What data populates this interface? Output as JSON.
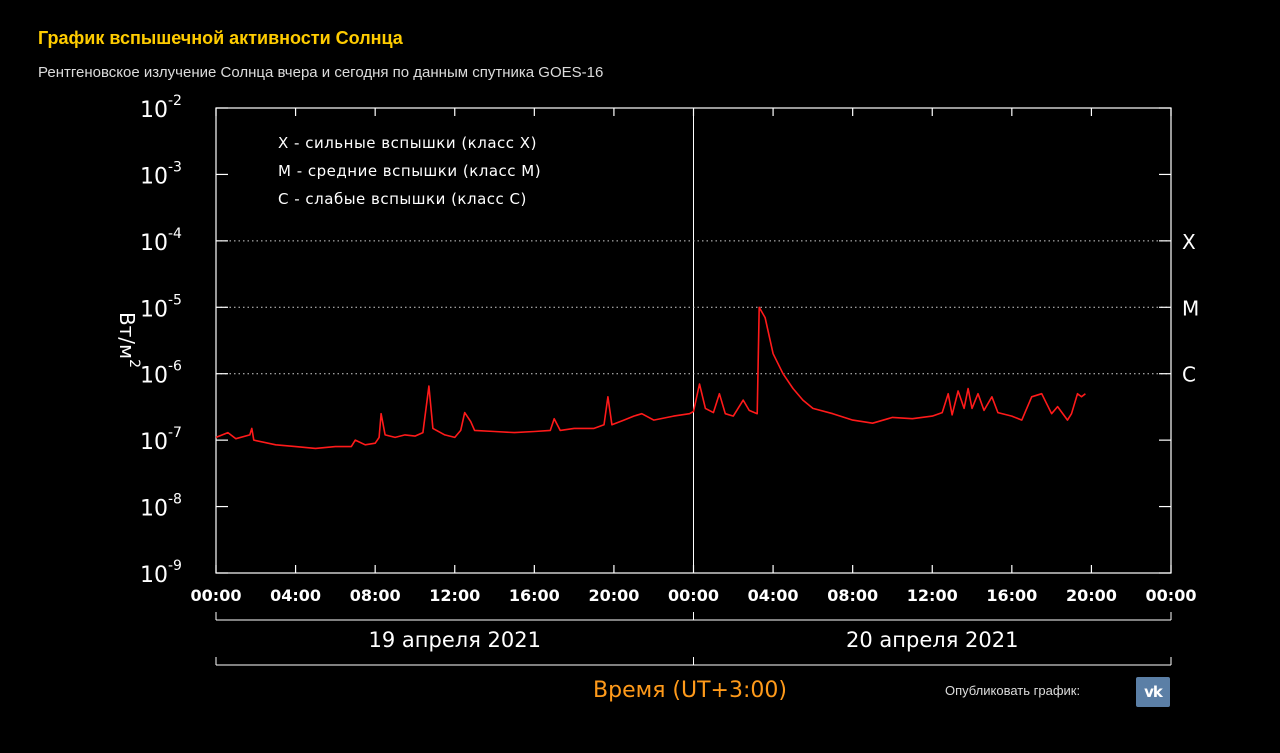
{
  "header": {
    "title": "График вспышечной активности Солнца",
    "subtitle": "Рентгеновское излучение Солнца вчера и сегодня по данным спутника GOES-16"
  },
  "publish": {
    "label": "Опубликовать график:",
    "icon": "vk-icon",
    "icon_text": "vk"
  },
  "colors": {
    "series": "#ff1a1a",
    "title": "#ffcc00",
    "time_label": "#ff9a1a"
  },
  "chart_data": {
    "type": "line",
    "yscale": "log",
    "ylim_exp": [
      -9,
      -2
    ],
    "y_ticks": [
      {
        "base": "10",
        "exp": "-2"
      },
      {
        "base": "10",
        "exp": "-3"
      },
      {
        "base": "10",
        "exp": "-4"
      },
      {
        "base": "10",
        "exp": "-5"
      },
      {
        "base": "10",
        "exp": "-6"
      },
      {
        "base": "10",
        "exp": "-7"
      },
      {
        "base": "10",
        "exp": "-8"
      },
      {
        "base": "10",
        "exp": "-9"
      }
    ],
    "ylabel": {
      "base": "Вт/м",
      "exp": "2"
    },
    "xlim_hours": [
      0,
      48
    ],
    "x_ticks": [
      "00:00",
      "04:00",
      "08:00",
      "12:00",
      "16:00",
      "20:00",
      "00:00",
      "04:00",
      "08:00",
      "12:00",
      "16:00",
      "20:00",
      "00:00"
    ],
    "day_labels": [
      "19 апреля 2021",
      "20 апреля 2021"
    ],
    "xlabel": "Время (UT+3:00)",
    "legend": [
      "X - сильные вспышки (класс X)",
      "M - средние вспышки (класс M)",
      "C - слабые вспышки (класс C)"
    ],
    "class_lines": [
      {
        "label": "X",
        "value": 0.0001
      },
      {
        "label": "M",
        "value": 1e-05
      },
      {
        "label": "C",
        "value": 1e-06
      }
    ],
    "series": [
      {
        "points": [
          [
            0,
            1.1e-07
          ],
          [
            0.6,
            1.3e-07
          ],
          [
            1,
            1.05e-07
          ],
          [
            1.7,
            1.2e-07
          ],
          [
            1.8,
            1.5e-07
          ],
          [
            1.9,
            1e-07
          ],
          [
            3,
            8.5e-08
          ],
          [
            4,
            8e-08
          ],
          [
            5,
            7.5e-08
          ],
          [
            6,
            8e-08
          ],
          [
            6.8,
            8e-08
          ],
          [
            7,
            1e-07
          ],
          [
            7.5,
            8.5e-08
          ],
          [
            8,
            9e-08
          ],
          [
            8.2,
            1.1e-07
          ],
          [
            8.3,
            2.5e-07
          ],
          [
            8.5,
            1.2e-07
          ],
          [
            9,
            1.1e-07
          ],
          [
            9.5,
            1.2e-07
          ],
          [
            10,
            1.15e-07
          ],
          [
            10.4,
            1.3e-07
          ],
          [
            10.7,
            6.5e-07
          ],
          [
            10.9,
            1.5e-07
          ],
          [
            11.5,
            1.2e-07
          ],
          [
            12,
            1.1e-07
          ],
          [
            12.3,
            1.4e-07
          ],
          [
            12.5,
            2.6e-07
          ],
          [
            12.8,
            1.9e-07
          ],
          [
            13,
            1.4e-07
          ],
          [
            14,
            1.35e-07
          ],
          [
            15,
            1.3e-07
          ],
          [
            16,
            1.35e-07
          ],
          [
            16.8,
            1.4e-07
          ],
          [
            17,
            2.1e-07
          ],
          [
            17.3,
            1.4e-07
          ],
          [
            18,
            1.5e-07
          ],
          [
            19,
            1.5e-07
          ],
          [
            19.5,
            1.7e-07
          ],
          [
            19.7,
            4.5e-07
          ],
          [
            19.9,
            1.7e-07
          ],
          [
            20.5,
            2e-07
          ],
          [
            21,
            2.3e-07
          ],
          [
            21.4,
            2.5e-07
          ],
          [
            22,
            2e-07
          ],
          [
            23,
            2.3e-07
          ],
          [
            23.8,
            2.5e-07
          ],
          [
            24,
            2.7e-07
          ],
          [
            24.3,
            7e-07
          ],
          [
            24.6,
            3e-07
          ],
          [
            25,
            2.6e-07
          ],
          [
            25.3,
            5e-07
          ],
          [
            25.6,
            2.5e-07
          ],
          [
            26,
            2.3e-07
          ],
          [
            26.5,
            4e-07
          ],
          [
            26.8,
            2.8e-07
          ],
          [
            27.2,
            2.5e-07
          ],
          [
            27.3,
            1e-05
          ],
          [
            27.6,
            7e-06
          ],
          [
            28,
            2e-06
          ],
          [
            28.5,
            1e-06
          ],
          [
            29,
            6e-07
          ],
          [
            29.5,
            4e-07
          ],
          [
            30,
            3e-07
          ],
          [
            31,
            2.5e-07
          ],
          [
            32,
            2e-07
          ],
          [
            33,
            1.8e-07
          ],
          [
            34,
            2.2e-07
          ],
          [
            35,
            2.1e-07
          ],
          [
            36,
            2.3e-07
          ],
          [
            36.5,
            2.6e-07
          ],
          [
            36.8,
            5e-07
          ],
          [
            37,
            2.4e-07
          ],
          [
            37.3,
            5.5e-07
          ],
          [
            37.6,
            3e-07
          ],
          [
            37.8,
            6e-07
          ],
          [
            38,
            3e-07
          ],
          [
            38.3,
            5e-07
          ],
          [
            38.6,
            2.8e-07
          ],
          [
            39,
            4.5e-07
          ],
          [
            39.3,
            2.6e-07
          ],
          [
            40,
            2.3e-07
          ],
          [
            40.5,
            2e-07
          ],
          [
            41,
            4.5e-07
          ],
          [
            41.5,
            5e-07
          ],
          [
            42,
            2.5e-07
          ],
          [
            42.3,
            3.2e-07
          ],
          [
            42.8,
            2e-07
          ],
          [
            43,
            2.5e-07
          ],
          [
            43.3,
            5e-07
          ],
          [
            43.5,
            4.5e-07
          ],
          [
            43.7,
            5e-07
          ]
        ]
      }
    ]
  }
}
